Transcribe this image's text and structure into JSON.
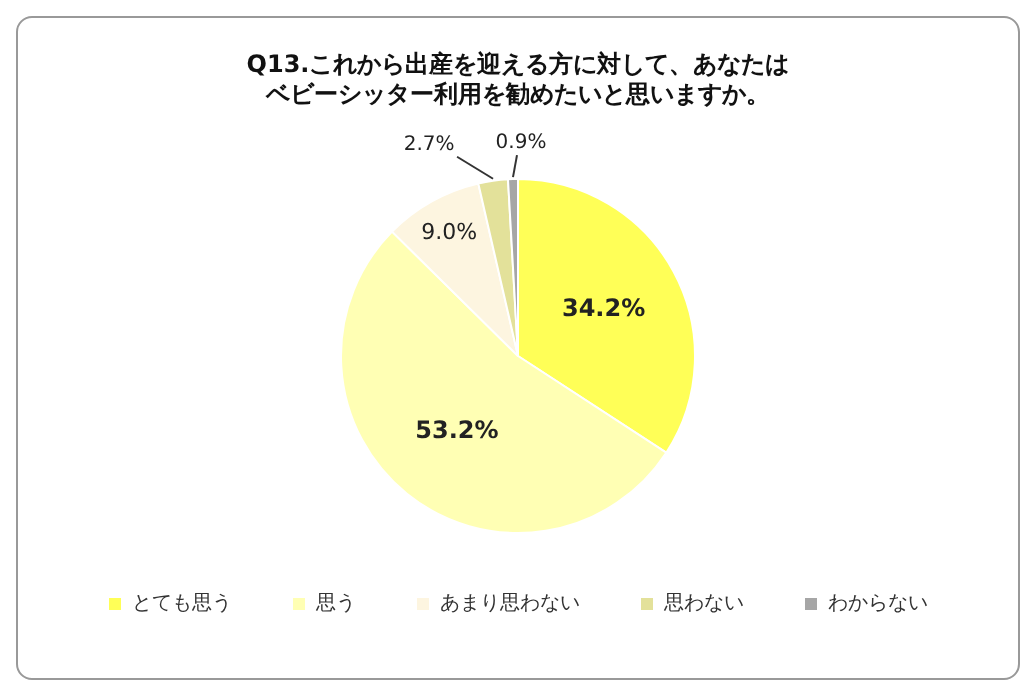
{
  "chart_data": {
    "type": "pie",
    "title": "Q13.これから出産を迎える方に対して、あなたはベビーシッター利用を勧めたいと思いますか。",
    "categories": [
      "とても思う",
      "思う",
      "あまり思わない",
      "思わない",
      "わからない"
    ],
    "values": [
      34.2,
      53.2,
      9.0,
      2.7,
      0.9
    ],
    "value_labels": [
      "34.2%",
      "53.2%",
      "9.0%",
      "2.7%",
      "0.9%"
    ],
    "colors": [
      "#ffff57",
      "#ffffb4",
      "#fdf5e0",
      "#e3e19a",
      "#a6a6a6"
    ],
    "legend": "bottom"
  }
}
